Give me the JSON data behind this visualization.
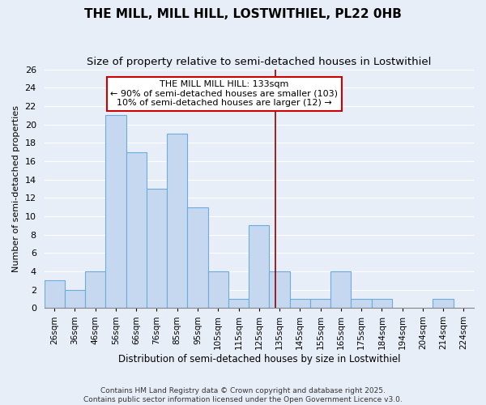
{
  "title": "THE MILL, MILL HILL, LOSTWITHIEL, PL22 0HB",
  "subtitle": "Size of property relative to semi-detached houses in Lostwithiel",
  "xlabel": "Distribution of semi-detached houses by size in Lostwithiel",
  "ylabel": "Number of semi-detached properties",
  "bar_labels": [
    "26sqm",
    "36sqm",
    "46sqm",
    "56sqm",
    "66sqm",
    "76sqm",
    "85sqm",
    "95sqm",
    "105sqm",
    "115sqm",
    "125sqm",
    "135sqm",
    "145sqm",
    "155sqm",
    "165sqm",
    "175sqm",
    "184sqm",
    "194sqm",
    "204sqm",
    "214sqm",
    "224sqm"
  ],
  "bar_values": [
    3,
    2,
    4,
    21,
    17,
    13,
    19,
    11,
    4,
    1,
    9,
    4,
    1,
    1,
    4,
    1,
    1,
    0,
    0,
    1,
    0
  ],
  "bar_color": "#c5d8f0",
  "bar_edge_color": "#6aacdd",
  "vline_color": "#8b0000",
  "annotation_title": "THE MILL MILL HILL: 133sqm",
  "annotation_line1": "← 90% of semi-detached houses are smaller (103)",
  "annotation_line2": "10% of semi-detached houses are larger (12) →",
  "annotation_box_facecolor": "#ffffff",
  "annotation_box_edge": "#cc0000",
  "ylim": [
    0,
    26
  ],
  "yticks": [
    0,
    2,
    4,
    6,
    8,
    10,
    12,
    14,
    16,
    18,
    20,
    22,
    24,
    26
  ],
  "footer1": "Contains HM Land Registry data © Crown copyright and database right 2025.",
  "footer2": "Contains public sector information licensed under the Open Government Licence v3.0.",
  "bg_color": "#e8eef8",
  "grid_color": "#ffffff",
  "title_fontsize": 11,
  "subtitle_fontsize": 9.5
}
